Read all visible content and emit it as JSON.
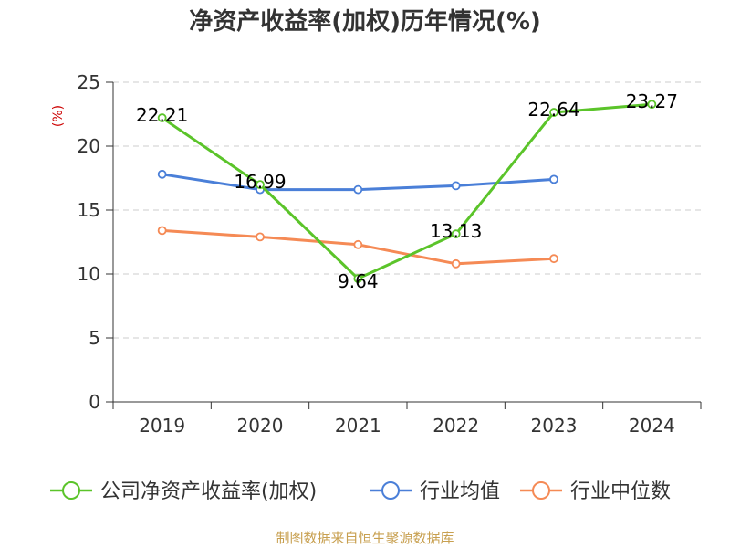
{
  "source": "制图数据来自恒生聚源数据库",
  "chart_data": {
    "type": "line",
    "title": "净资产收益率(加权)历年情况(%)",
    "ylabel": "(%)",
    "xlabel": "",
    "categories": [
      "2019",
      "2020",
      "2021",
      "2022",
      "2023",
      "2024"
    ],
    "ylim": [
      0,
      25
    ],
    "yticks": [
      0,
      5,
      10,
      15,
      20,
      25
    ],
    "grid": "horizontal dashed",
    "legend_position": "bottom",
    "series": [
      {
        "name": "公司净资产收益率(加权)",
        "color": "#5bc42a",
        "values": [
          22.21,
          16.99,
          9.64,
          13.13,
          22.64,
          23.27
        ],
        "labels": [
          "22.21",
          "16.99",
          "9.64",
          "13.13",
          "22.64",
          "23.27"
        ]
      },
      {
        "name": "行业均值",
        "color": "#4a7fd8",
        "values": [
          17.8,
          16.6,
          16.6,
          16.9,
          17.4,
          null
        ]
      },
      {
        "name": "行业中位数",
        "color": "#f58a55",
        "values": [
          13.4,
          12.9,
          12.3,
          10.8,
          11.2,
          null
        ]
      }
    ]
  }
}
